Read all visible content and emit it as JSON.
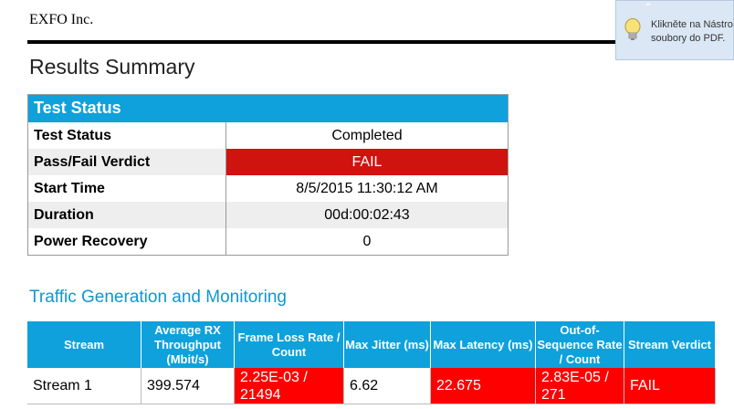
{
  "header": {
    "company": "EXFO Inc."
  },
  "title": "Results Summary",
  "test_status": {
    "heading": "Test Status",
    "rows": [
      {
        "label": "Test Status",
        "value": "Completed"
      },
      {
        "label": "Pass/Fail Verdict",
        "value": "FAIL"
      },
      {
        "label": "Start Time",
        "value": "8/5/2015 11:30:12 AM"
      },
      {
        "label": "Duration",
        "value": "00d:00:02:43"
      },
      {
        "label": "Power Recovery",
        "value": "0"
      }
    ]
  },
  "traffic": {
    "heading": "Traffic Generation and Monitoring",
    "columns": [
      "Stream",
      "Average RX Throughput (Mbit/s)",
      "Frame Loss Rate / Count",
      "Max Jitter (ms)",
      "Max Latency (ms)",
      "Out-of-Sequence Rate / Count",
      "Stream Verdict"
    ],
    "rows": [
      [
        "Stream 1",
        "399.574",
        "2.25E-03 / 21494",
        "6.62",
        "22.675",
        "2.83E-05 / 271",
        "FAIL"
      ]
    ]
  },
  "toast": {
    "line1": "Klikněte na Nástro",
    "line2": "soubory do PDF."
  },
  "colors": {
    "accent": "#0ea1dc",
    "fail_dark": "#cf1410",
    "fail_bright": "#fe0000"
  }
}
